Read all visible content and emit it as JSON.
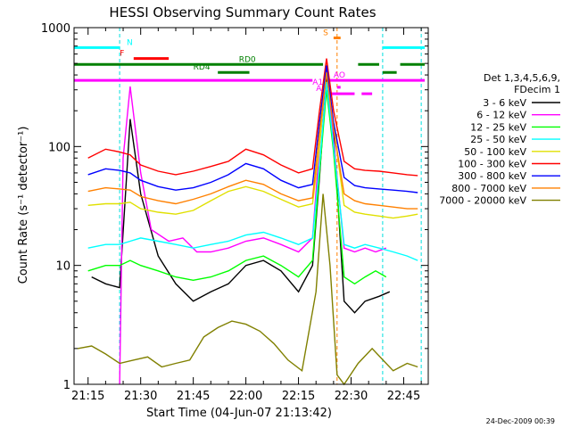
{
  "chart_data": {
    "type": "line",
    "title": "HESSI Observing Summary Count Rates",
    "xlabel": "Start Time (04-Jun-07 21:13:42)",
    "ylabel": "Count Rate (s⁻¹ detector⁻¹)",
    "yscale": "log",
    "ylim": [
      1,
      1000
    ],
    "xlim": [
      "21:11",
      "22:52"
    ],
    "x_ticks": [
      "21:15",
      "21:30",
      "21:45",
      "22:00",
      "22:15",
      "22:30",
      "22:45"
    ],
    "y_ticks": [
      "1",
      "10",
      "100",
      "1000"
    ],
    "timestamp": "24-Dec-2009 00:39",
    "legend": {
      "placement": "right",
      "header": [
        "Det 1,3,4,5,6,9,",
        "FDecim 1"
      ]
    },
    "series": [
      {
        "name": "3 - 6 keV",
        "color": "#000000",
        "x": [
          "21:16",
          "21:20",
          "21:24",
          "21:27",
          "21:30",
          "21:35",
          "21:40",
          "21:45",
          "21:50",
          "21:55",
          "22:00",
          "22:05",
          "22:10",
          "22:15",
          "22:19",
          "22:21",
          "22:23",
          "22:25",
          "22:28",
          "22:31",
          "22:34",
          "22:38",
          "22:41"
        ],
        "y": [
          8,
          7,
          6.5,
          170,
          40,
          12,
          7,
          5,
          6,
          7,
          10,
          11,
          9,
          6,
          10,
          55,
          400,
          130,
          5,
          4,
          5,
          5.5,
          6
        ]
      },
      {
        "name": "6 - 12 keV",
        "color": "#ff00ff",
        "x": [
          "21:24",
          "21:25",
          "21:27",
          "21:30",
          "21:33",
          "21:38",
          "21:42",
          "21:46",
          "21:50",
          "21:55",
          "22:00",
          "22:05",
          "22:10",
          "22:15",
          "22:19",
          "22:21",
          "22:23",
          "22:25",
          "22:28",
          "22:31",
          "22:34",
          "22:37",
          "22:40"
        ],
        "y": [
          1,
          80,
          320,
          60,
          20,
          16,
          17,
          13,
          13,
          14,
          16,
          17,
          15,
          13,
          17,
          100,
          450,
          110,
          14,
          13,
          14,
          13,
          14
        ]
      },
      {
        "name": "12 - 25 keV",
        "color": "#00ff00",
        "x": [
          "21:15",
          "21:20",
          "21:24",
          "21:27",
          "21:30",
          "21:35",
          "21:40",
          "21:45",
          "21:50",
          "21:55",
          "22:00",
          "22:05",
          "22:10",
          "22:15",
          "22:19",
          "22:21",
          "22:23",
          "22:25",
          "22:28",
          "22:31",
          "22:34",
          "22:37",
          "22:40"
        ],
        "y": [
          9,
          10,
          10,
          11,
          10,
          9,
          8,
          7.5,
          8,
          9,
          11,
          12,
          10,
          8,
          11,
          60,
          300,
          90,
          8,
          7,
          8,
          9,
          8
        ]
      },
      {
        "name": "25 - 50 keV",
        "color": "#00ffff",
        "x": [
          "21:15",
          "21:20",
          "21:24",
          "21:27",
          "21:30",
          "21:35",
          "21:40",
          "21:45",
          "21:50",
          "21:55",
          "22:00",
          "22:05",
          "22:10",
          "22:15",
          "22:19",
          "22:21",
          "22:23",
          "22:25",
          "22:28",
          "22:31",
          "22:34",
          "22:38",
          "22:42",
          "22:46",
          "22:49"
        ],
        "y": [
          14,
          15,
          15,
          16,
          17,
          16,
          15,
          14,
          15,
          16,
          18,
          19,
          17,
          15,
          17,
          70,
          350,
          100,
          15,
          14,
          15,
          14,
          13,
          12,
          11
        ]
      },
      {
        "name": "50 - 100 keV",
        "color": "#e0e000",
        "x": [
          "21:15",
          "21:20",
          "21:24",
          "21:27",
          "21:30",
          "21:35",
          "21:40",
          "21:45",
          "21:50",
          "21:55",
          "22:00",
          "22:05",
          "22:10",
          "22:15",
          "22:19",
          "22:21",
          "22:23",
          "22:25",
          "22:28",
          "22:31",
          "22:34",
          "22:38",
          "22:42",
          "22:46",
          "22:49"
        ],
        "y": [
          32,
          33,
          33,
          34,
          30,
          28,
          27,
          29,
          35,
          42,
          46,
          42,
          36,
          31,
          33,
          100,
          500,
          150,
          32,
          28,
          27,
          26,
          25,
          26,
          27
        ]
      },
      {
        "name": "100 - 300 keV",
        "color": "#ff0000",
        "x": [
          "21:15",
          "21:20",
          "21:24",
          "21:27",
          "21:30",
          "21:35",
          "21:40",
          "21:45",
          "21:50",
          "21:55",
          "22:00",
          "22:05",
          "22:10",
          "22:15",
          "22:19",
          "22:21",
          "22:23",
          "22:25",
          "22:28",
          "22:31",
          "22:34",
          "22:38",
          "22:42",
          "22:46",
          "22:49"
        ],
        "y": [
          80,
          95,
          90,
          85,
          70,
          62,
          58,
          62,
          68,
          75,
          95,
          85,
          70,
          60,
          65,
          200,
          550,
          200,
          75,
          65,
          63,
          62,
          60,
          58,
          57
        ]
      },
      {
        "name": "300 - 800 keV",
        "color": "#0000ff",
        "x": [
          "21:15",
          "21:20",
          "21:24",
          "21:27",
          "21:30",
          "21:35",
          "21:40",
          "21:45",
          "21:50",
          "21:55",
          "22:00",
          "22:05",
          "22:10",
          "22:15",
          "22:19",
          "22:21",
          "22:23",
          "22:25",
          "22:28",
          "22:31",
          "22:34",
          "22:38",
          "22:42",
          "22:46",
          "22:49"
        ],
        "y": [
          58,
          65,
          63,
          60,
          52,
          46,
          43,
          45,
          50,
          58,
          72,
          65,
          52,
          45,
          48,
          160,
          480,
          160,
          55,
          47,
          45,
          44,
          43,
          42,
          41
        ]
      },
      {
        "name": "800 - 7000 keV",
        "color": "#ff8000",
        "x": [
          "21:15",
          "21:20",
          "21:24",
          "21:27",
          "21:30",
          "21:35",
          "21:40",
          "21:45",
          "21:50",
          "21:55",
          "22:00",
          "22:05",
          "22:10",
          "22:15",
          "22:19",
          "22:21",
          "22:23",
          "22:25",
          "22:28",
          "22:31",
          "22:34",
          "22:38",
          "22:42",
          "22:46",
          "22:49"
        ],
        "y": [
          42,
          45,
          44,
          43,
          38,
          35,
          33,
          36,
          40,
          46,
          52,
          48,
          40,
          35,
          37,
          130,
          420,
          140,
          40,
          35,
          33,
          32,
          31,
          30,
          30
        ]
      },
      {
        "name": "7000 - 20000 keV",
        "color": "#808000",
        "x": [
          "21:12",
          "21:16",
          "21:20",
          "21:24",
          "21:28",
          "21:32",
          "21:36",
          "21:40",
          "21:44",
          "21:48",
          "21:52",
          "21:56",
          "22:00",
          "22:04",
          "22:08",
          "22:12",
          "22:16",
          "22:20",
          "22:22",
          "22:24",
          "22:26",
          "22:28",
          "22:32",
          "22:36",
          "22:40",
          "22:42",
          "22:46",
          "22:49"
        ],
        "y": [
          2,
          2.1,
          1.8,
          1.5,
          1.6,
          1.7,
          1.4,
          1.5,
          1.6,
          2.5,
          3,
          3.4,
          3.2,
          2.8,
          2.2,
          1.6,
          1.3,
          6,
          40,
          10,
          1.2,
          1,
          1.5,
          2,
          1.5,
          1.3,
          1.5,
          1.4
        ]
      }
    ],
    "markers": [
      {
        "label": "N",
        "color": "#00ffff",
        "segments": [
          [
            "21:11",
            "21:24"
          ],
          [
            "22:39",
            "22:51"
          ]
        ],
        "y": 680
      },
      {
        "label": "F",
        "color": "#ff0000",
        "segments": [
          [
            "21:28",
            "21:38"
          ]
        ],
        "y": 550
      },
      {
        "label": "RD0",
        "color": "#008000",
        "segments": [
          [
            "21:11",
            "22:22"
          ],
          [
            "22:32",
            "22:38"
          ],
          [
            "22:44",
            "22:51"
          ]
        ],
        "y": 490
      },
      {
        "label": "RD4",
        "color": "#008000",
        "segments": [
          [
            "21:52",
            "22:01"
          ],
          [
            "22:39",
            "22:43"
          ]
        ],
        "y": 420
      },
      {
        "label": "AO",
        "color": "#ff00ff",
        "segments": [
          [
            "21:11",
            "22:19"
          ],
          [
            "22:23",
            "22:51"
          ]
        ],
        "y": 360
      },
      {
        "label": "A1",
        "color": "#ff00ff",
        "segments": [
          [
            "22:26",
            "22:27"
          ]
        ],
        "y": 315
      },
      {
        "label": "A3",
        "color": "#ff00ff",
        "segments": [
          [
            "22:24",
            "22:31"
          ],
          [
            "22:33",
            "22:36"
          ]
        ],
        "y": 278
      },
      {
        "label": "S",
        "color": "#ff8000",
        "segments": [
          [
            "22:25",
            "22:27"
          ]
        ],
        "y": 820
      }
    ]
  }
}
